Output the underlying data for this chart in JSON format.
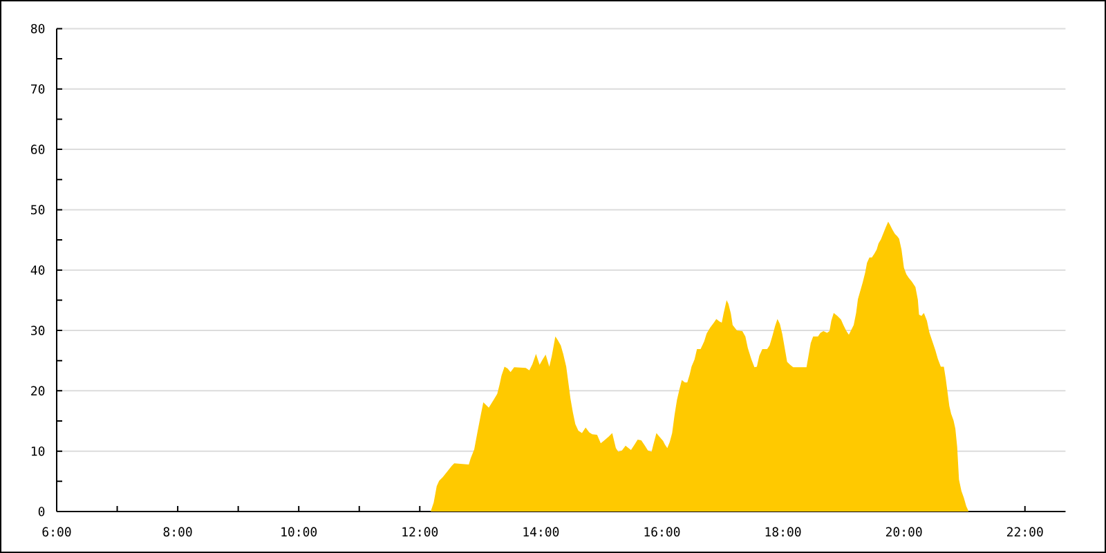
{
  "chart_data": {
    "type": "area",
    "x": [
      12.18,
      12.23,
      12.28,
      12.32,
      12.38,
      12.46,
      12.53,
      12.57,
      12.81,
      12.84,
      12.9,
      12.95,
      13.0,
      13.05,
      13.1,
      13.14,
      13.22,
      13.28,
      13.32,
      13.35,
      13.4,
      13.45,
      13.5,
      13.56,
      13.75,
      13.81,
      13.86,
      13.92,
      13.98,
      14.03,
      14.08,
      14.14,
      14.18,
      14.24,
      14.28,
      14.33,
      14.37,
      14.42,
      14.46,
      14.49,
      14.53,
      14.57,
      14.62,
      14.68,
      14.74,
      14.8,
      14.85,
      14.93,
      14.99,
      15.04,
      15.12,
      15.18,
      15.24,
      15.28,
      15.34,
      15.4,
      15.45,
      15.49,
      15.55,
      15.6,
      15.66,
      15.72,
      15.77,
      15.83,
      15.86,
      15.91,
      15.96,
      16.02,
      16.05,
      16.09,
      16.13,
      16.17,
      16.21,
      16.25,
      16.29,
      16.33,
      16.38,
      16.42,
      16.46,
      16.49,
      16.54,
      16.58,
      16.64,
      16.7,
      16.74,
      16.8,
      16.86,
      16.9,
      16.95,
      16.99,
      17.02,
      17.07,
      17.1,
      17.14,
      17.17,
      17.24,
      17.33,
      17.38,
      17.42,
      17.48,
      17.53,
      17.57,
      17.61,
      17.66,
      17.74,
      17.78,
      17.83,
      17.87,
      17.91,
      17.95,
      17.99,
      18.03,
      18.07,
      18.12,
      18.17,
      18.39,
      18.42,
      18.46,
      18.5,
      18.58,
      18.62,
      18.67,
      18.73,
      18.77,
      18.8,
      18.84,
      18.9,
      18.96,
      19.0,
      19.05,
      19.09,
      19.13,
      19.17,
      19.21,
      19.24,
      19.28,
      19.32,
      19.36,
      19.39,
      19.43,
      19.47,
      19.51,
      19.55,
      19.58,
      19.62,
      19.66,
      19.7,
      19.74,
      19.77,
      19.81,
      19.85,
      19.89,
      19.92,
      19.96,
      20.0,
      20.04,
      20.08,
      20.13,
      20.19,
      20.23,
      20.25,
      20.29,
      20.33,
      20.38,
      20.42,
      20.47,
      20.52,
      20.56,
      20.61,
      20.66,
      20.69,
      20.72,
      20.75,
      20.78,
      20.82,
      20.85,
      20.88,
      20.91,
      20.95,
      20.99,
      21.03,
      21.07
    ],
    "series": [
      {
        "color": "#ffc900",
        "values": [
          0,
          1.5,
          4.2,
          5.1,
          5.7,
          6.7,
          7.6,
          8.0,
          7.8,
          8.8,
          10.3,
          13.0,
          15.6,
          18.1,
          17.6,
          17.2,
          18.5,
          19.5,
          21.1,
          22.5,
          24.0,
          23.7,
          23.1,
          23.9,
          23.8,
          23.4,
          24.4,
          26.1,
          24.3,
          25.2,
          26.0,
          24.0,
          25.7,
          29.0,
          28.4,
          27.5,
          26.1,
          24.0,
          21.0,
          18.7,
          16.4,
          14.5,
          13.4,
          13.0,
          13.9,
          13.1,
          12.8,
          12.7,
          11.3,
          11.7,
          12.4,
          13.0,
          10.5,
          9.9,
          10.1,
          10.9,
          10.5,
          10.2,
          11.1,
          11.9,
          11.8,
          10.9,
          10.1,
          9.9,
          11.1,
          13.0,
          12.4,
          11.7,
          11.1,
          10.5,
          11.5,
          13.0,
          16.0,
          18.5,
          20.2,
          21.8,
          21.4,
          21.4,
          22.7,
          24.0,
          25.2,
          26.9,
          26.9,
          28.2,
          29.5,
          30.5,
          31.3,
          31.9,
          31.5,
          31.3,
          32.8,
          35.0,
          34.4,
          32.8,
          30.9,
          30.0,
          29.9,
          29.0,
          27.1,
          25.2,
          23.9,
          24.0,
          25.8,
          26.9,
          26.9,
          27.5,
          29.2,
          30.7,
          31.9,
          31.1,
          29.4,
          27.1,
          24.8,
          24.3,
          23.9,
          23.9,
          25.6,
          27.9,
          29.0,
          29.0,
          29.6,
          29.9,
          29.6,
          29.9,
          31.6,
          32.9,
          32.4,
          31.8,
          30.9,
          29.9,
          29.3,
          30.1,
          30.9,
          32.9,
          35.2,
          36.6,
          38.0,
          39.6,
          41.2,
          42.1,
          42.1,
          42.7,
          43.4,
          44.4,
          45.1,
          46.1,
          47.1,
          48.0,
          47.5,
          46.7,
          46.0,
          45.6,
          45.2,
          43.4,
          40.4,
          39.3,
          38.7,
          38.1,
          37.2,
          35.1,
          32.6,
          32.4,
          32.9,
          31.6,
          29.7,
          28.2,
          26.7,
          25.3,
          24.0,
          24.0,
          22.1,
          19.8,
          17.5,
          16.2,
          15.1,
          13.7,
          10.7,
          5.3,
          3.4,
          2.3,
          0.9,
          0
        ]
      }
    ],
    "xlim": [
      6,
      22.67
    ],
    "xticks": [
      {
        "value": 6,
        "label": "6:00"
      },
      {
        "value": 7,
        "label": null
      },
      {
        "value": 8,
        "label": "8:00"
      },
      {
        "value": 9,
        "label": null
      },
      {
        "value": 10,
        "label": "10:00"
      },
      {
        "value": 11,
        "label": null
      },
      {
        "value": 12,
        "label": "12:00"
      },
      {
        "value": 13,
        "label": null
      },
      {
        "value": 14,
        "label": "14:00"
      },
      {
        "value": 15,
        "label": null
      },
      {
        "value": 16,
        "label": "16:00"
      },
      {
        "value": 17,
        "label": null
      },
      {
        "value": 18,
        "label": "18:00"
      },
      {
        "value": 19,
        "label": null
      },
      {
        "value": 20,
        "label": "20:00"
      },
      {
        "value": 21,
        "label": null
      },
      {
        "value": 22,
        "label": "22:00"
      }
    ],
    "ylim": [
      0,
      80
    ],
    "yticks": [
      0,
      {
        "value": 5,
        "label": null
      },
      10,
      {
        "value": 15,
        "label": null
      },
      20,
      {
        "value": 25,
        "label": null
      },
      30,
      {
        "value": 35,
        "label": null
      },
      40,
      {
        "value": 45,
        "label": null
      },
      50,
      {
        "value": 55,
        "label": null
      },
      60,
      {
        "value": 65,
        "label": null
      },
      70,
      {
        "value": 75,
        "label": null
      },
      80
    ],
    "grid": "y"
  }
}
